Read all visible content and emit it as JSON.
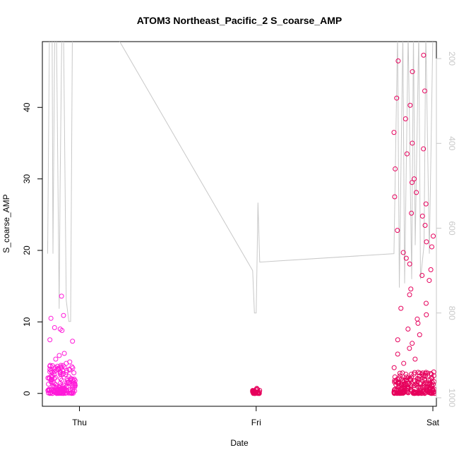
{
  "chart_data": {
    "type": "scatter",
    "title": "ATOM3 Northeast_Pacific_2 S_coarse_AMP",
    "xlabel": "Date",
    "ylabel": "S_coarse_AMP",
    "x_ticks": [
      "Thu",
      "Fri",
      "Sat"
    ],
    "x_tick_values": [
      0,
      1,
      2
    ],
    "x_range_days": [
      -0.21,
      2.02
    ],
    "ylim": [
      -1.8,
      49.2
    ],
    "y_ticks": [
      0,
      10,
      20,
      30,
      40
    ],
    "secondary_axis": {
      "label": "",
      "reversed": true,
      "ticks": [
        200,
        400,
        600,
        800,
        1000
      ],
      "range": [
        1020,
        160
      ],
      "color": "#c8c8c8"
    },
    "grid": false,
    "legend": "none",
    "point_colors": {
      "early": "#ff1ad9",
      "late": "#e6005c"
    },
    "clusters": [
      {
        "x_start": -0.18,
        "x_end": -0.02,
        "typical_max": 4.0,
        "y_values": [
          13.6,
          10.9,
          10.5,
          9.2,
          9.0,
          8.8,
          7.5,
          7.3,
          5.6,
          5.3,
          4.8,
          4.4,
          4.2,
          3.8,
          3.6,
          3.4,
          3.2,
          3.0,
          2.8,
          2.6,
          2.4,
          2.2,
          2.0,
          1.8,
          1.6,
          1.4,
          1.2,
          1.0,
          0.8,
          0.6,
          0.4,
          0.2
        ],
        "color": "early"
      },
      {
        "x_start": 0.98,
        "x_end": 1.02,
        "typical_max": 0.6,
        "y_values": [
          0.7,
          0.6,
          0.5,
          0.4,
          0.3,
          0.2,
          0.1
        ],
        "color": "late"
      },
      {
        "x_start": 1.78,
        "x_end": 2.01,
        "typical_max": 3.0,
        "y_values": [
          47.3,
          46.5,
          45.0,
          42.3,
          41.3,
          40.3,
          38.4,
          36.5,
          35.0,
          34.2,
          33.5,
          31.4,
          30.0,
          29.5,
          28.1,
          27.5,
          26.5,
          25.2,
          24.8,
          23.5,
          22.8,
          22.0,
          21.2,
          20.5,
          19.7,
          18.9,
          18.1,
          17.3,
          16.5,
          15.8,
          14.6,
          13.8,
          12.6,
          11.9,
          11.0,
          10.4,
          9.8,
          9.0,
          8.2,
          7.5,
          7.0,
          6.3,
          5.5,
          4.8,
          4.2,
          3.6,
          3.0,
          2.4,
          1.8,
          1.2,
          0.6,
          0.3
        ],
        "color": "late"
      }
    ],
    "secondary_line": [
      [
        -0.18,
        630
      ],
      [
        -0.18,
        660
      ],
      [
        -0.17,
        140
      ],
      [
        -0.155,
        140
      ],
      [
        -0.15,
        660
      ],
      [
        -0.14,
        140
      ],
      [
        -0.13,
        140
      ],
      [
        -0.115,
        790
      ],
      [
        -0.11,
        520
      ],
      [
        -0.1,
        140
      ],
      [
        -0.09,
        140
      ],
      [
        -0.075,
        770
      ],
      [
        -0.06,
        820
      ],
      [
        -0.05,
        820
      ],
      [
        -0.04,
        140
      ],
      [
        0.2,
        140
      ],
      [
        0.98,
        700
      ],
      [
        0.99,
        800
      ],
      [
        1.0,
        800
      ],
      [
        1.005,
        680
      ],
      [
        1.01,
        540
      ],
      [
        1.02,
        680
      ],
      [
        1.78,
        660
      ],
      [
        1.8,
        140
      ],
      [
        1.81,
        740
      ],
      [
        1.83,
        140
      ],
      [
        1.84,
        730
      ],
      [
        1.86,
        140
      ],
      [
        1.88,
        720
      ],
      [
        1.89,
        140
      ],
      [
        1.9,
        640
      ],
      [
        1.92,
        140
      ],
      [
        1.93,
        720
      ],
      [
        1.95,
        640
      ],
      [
        1.96,
        140
      ],
      [
        1.98,
        660
      ],
      [
        2.0,
        140
      ]
    ]
  }
}
